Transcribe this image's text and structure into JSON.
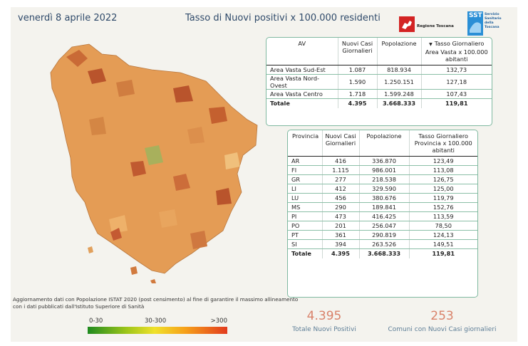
{
  "header": {
    "date": "venerdì 8 aprile 2022",
    "title": "Tasso di Nuovi positivi x 100.000 residenti",
    "logo_rt_text": "Regione Toscana",
    "logo_sst_title": "SST",
    "logo_sst_subtitle": "Servizio Sanitario della Toscana"
  },
  "av_table": {
    "headers": {
      "av": "AV",
      "cases": "Nuovi Casi Giornalieri",
      "pop": "Popolazione",
      "rate": "Tasso Giornaliero Area Vasta x 100.000 abitanti"
    },
    "rows": [
      {
        "name": "Area Vasta Sud-Est",
        "cases": "1.087",
        "pop": "818.934",
        "rate": "132,73"
      },
      {
        "name": "Area Vasta Nord-Ovest",
        "cases": "1.590",
        "pop": "1.250.151",
        "rate": "127,18"
      },
      {
        "name": "Area Vasta Centro",
        "cases": "1.718",
        "pop": "1.599.248",
        "rate": "107,43"
      }
    ],
    "total": {
      "name": "Totale",
      "cases": "4.395",
      "pop": "3.668.333",
      "rate": "119,81"
    }
  },
  "prov_table": {
    "headers": {
      "prov": "Provincia",
      "cases": "Nuovi Casi Giornalieri",
      "pop": "Popolazione",
      "rate": "Tasso Giornaliero Provincia x 100.000 abitanti"
    },
    "rows": [
      {
        "name": "AR",
        "cases": "416",
        "pop": "336.870",
        "rate": "123,49"
      },
      {
        "name": "FI",
        "cases": "1.115",
        "pop": "986.001",
        "rate": "113,08"
      },
      {
        "name": "GR",
        "cases": "277",
        "pop": "218.538",
        "rate": "126,75"
      },
      {
        "name": "LI",
        "cases": "412",
        "pop": "329.590",
        "rate": "125,00"
      },
      {
        "name": "LU",
        "cases": "456",
        "pop": "380.676",
        "rate": "119,79"
      },
      {
        "name": "MS",
        "cases": "290",
        "pop": "189.841",
        "rate": "152,76"
      },
      {
        "name": "PI",
        "cases": "473",
        "pop": "416.425",
        "rate": "113,59"
      },
      {
        "name": "PO",
        "cases": "201",
        "pop": "256.047",
        "rate": "78,50"
      },
      {
        "name": "PT",
        "cases": "361",
        "pop": "290.819",
        "rate": "124,13"
      },
      {
        "name": "SI",
        "cases": "394",
        "pop": "263.526",
        "rate": "149,51"
      }
    ],
    "total": {
      "name": "Totale",
      "cases": "4.395",
      "pop": "3.668.333",
      "rate": "119,81"
    }
  },
  "note": "Aggiornamento dati con Popolazione ISTAT 2020 (post censimento) al fine di garantire il massimo allineamento con i dati pubblicati dall'Istituto Superiore di Sanità",
  "legend": {
    "low": "0-30",
    "mid": "30-300",
    "high": ">300"
  },
  "kpis": {
    "total_value": "4.395",
    "total_label": "Totale Nuovi Positivi",
    "comuni_value": "253",
    "comuni_label": "Comuni con Nuovi Casi giornalieri"
  },
  "colors": {
    "accent_border": "#7fb9a0",
    "kpi_value": "#d9826a",
    "kpi_label": "#5d7e97",
    "title": "#2f4a6a"
  }
}
